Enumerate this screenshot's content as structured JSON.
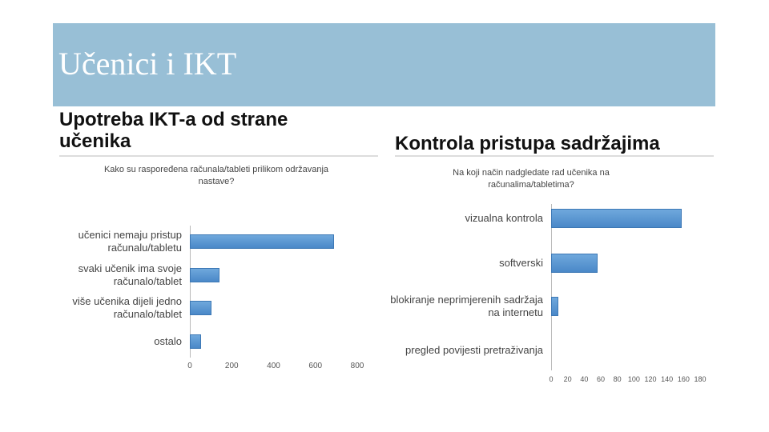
{
  "slide_title": "Učenici i IKT",
  "chart_data": [
    {
      "type": "bar",
      "orientation": "horizontal",
      "heading": "Upotreba IKT-a od strane učenika",
      "title": "Kako su raspoređena računala/tableti prilikom održavanja nastave?",
      "categories": [
        "učenici nemaju pristup računalu/tabletu",
        "svaki učenik ima svoje računalo/tablet",
        "više učenika dijeli jedno računalo/tablet",
        "ostalo"
      ],
      "values": [
        690,
        140,
        105,
        55
      ],
      "color": "#5b9bd5",
      "xlim": [
        0,
        800
      ],
      "xticks": [
        0,
        200,
        400,
        600,
        800
      ],
      "grid": false
    },
    {
      "type": "bar",
      "orientation": "horizontal",
      "heading": "Kontrola pristupa sadržajima",
      "title": "Na koji način nadgledate rad učenika na računalima/tabletima?",
      "categories": [
        "vizualna kontrola",
        "softverski",
        "blokiranje neprimjerenih sadržaja na internetu",
        "pregled povijesti pretraživanja"
      ],
      "values": [
        158,
        56,
        9,
        0
      ],
      "color": "#5b9bd5",
      "xlim": [
        0,
        180
      ],
      "xticks": [
        0,
        20,
        40,
        60,
        80,
        100,
        120,
        140,
        160,
        180
      ],
      "grid": false
    }
  ]
}
